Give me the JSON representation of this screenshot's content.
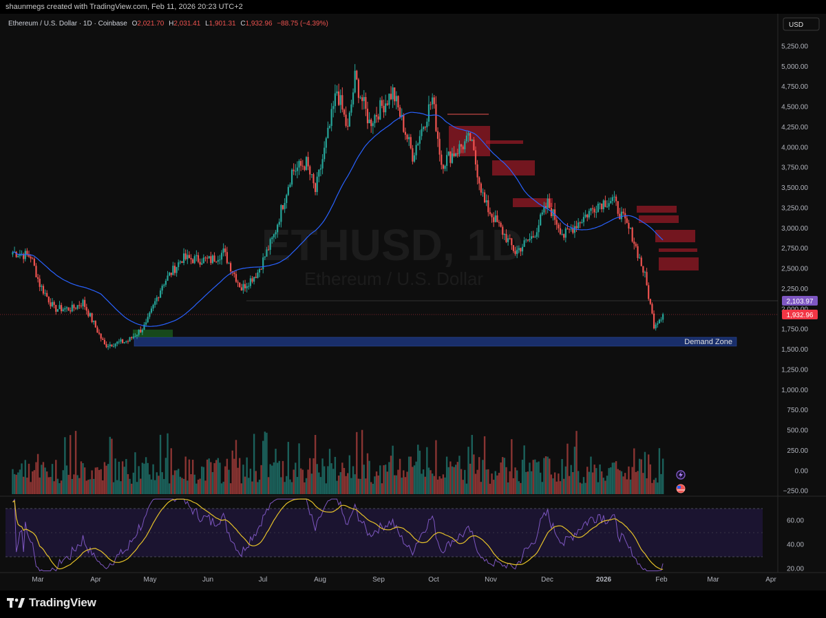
{
  "header": {
    "credit": "shaunmegs created with TradingView.com, Feb 11, 2026 20:23 UTC+2"
  },
  "chart_info": {
    "pair": "Ethereum / U.S. Dollar · 1D · Coinbase",
    "o_label": "O",
    "o_value": "2,021.70",
    "h_label": "H",
    "h_value": "2,031.41",
    "l_label": "L",
    "l_value": "1,901.31",
    "c_label": "C",
    "c_value": "1,932.96",
    "change": "−88.75 (−4.39%)",
    "currency": "USD",
    "watermark_symbol": "ETHUSD, 1D",
    "watermark_name": "Ethereum / U.S. Dollar"
  },
  "price_axis": [
    "5,250.00",
    "5,000.00",
    "4,750.00",
    "4,500.00",
    "4,250.00",
    "4,000.00",
    "3,750.00",
    "3,500.00",
    "3,250.00",
    "3,000.00",
    "2,750.00",
    "2,500.00",
    "2,250.00",
    "2,000.00",
    "1,750.00",
    "1,500.00",
    "1,250.00",
    "1,000.00",
    "750.00",
    "500.00",
    "250.00",
    "0.00",
    "−250.00"
  ],
  "rsi_axis": [
    "60.00",
    "40.00",
    "20.00"
  ],
  "time_axis": [
    "Mar",
    "Apr",
    "May",
    "Jun",
    "Jul",
    "Aug",
    "Sep",
    "Oct",
    "Nov",
    "Dec",
    "2026",
    "Feb",
    "Mar",
    "Apr"
  ],
  "price_tags": {
    "ma_value": "2,103.97",
    "last_price": "1,932.96"
  },
  "demand_zone": {
    "label": "Demand Zone",
    "from": 1555,
    "to": 1665
  },
  "footer": {
    "brand": "TradingView"
  },
  "colors": {
    "up": "#26a69a",
    "down": "#ef5350",
    "ma": "#2962ff",
    "rsi": "#7e57c2",
    "rsi_ma": "#e6c229",
    "zone": "#1e3a8a",
    "ma_tag": "#7e57c2",
    "last_tag": "#f23645"
  },
  "chart_data": {
    "type": "candlestick",
    "title": "Ethereum / U.S. Dollar · 1D · Coinbase",
    "x_range": [
      "2025-02-11",
      "2026-04-15"
    ],
    "y_range": [
      1250,
      5300
    ],
    "price_path": [
      {
        "date": "2025-02-15",
        "close": 2700
      },
      {
        "date": "2025-02-25",
        "close": 2650
      },
      {
        "date": "2025-03-02",
        "close": 2300
      },
      {
        "date": "2025-03-10",
        "close": 2000
      },
      {
        "date": "2025-03-20",
        "close": 2000
      },
      {
        "date": "2025-03-26",
        "close": 2080
      },
      {
        "date": "2025-04-07",
        "close": 1550
      },
      {
        "date": "2025-04-20",
        "close": 1600
      },
      {
        "date": "2025-04-30",
        "close": 1800
      },
      {
        "date": "2025-05-09",
        "close": 2300
      },
      {
        "date": "2025-05-20",
        "close": 2620
      },
      {
        "date": "2025-06-05",
        "close": 2600
      },
      {
        "date": "2025-06-12",
        "close": 2700
      },
      {
        "date": "2025-06-22",
        "close": 2250
      },
      {
        "date": "2025-07-01",
        "close": 2450
      },
      {
        "date": "2025-07-10",
        "close": 2900
      },
      {
        "date": "2025-07-20",
        "close": 3700
      },
      {
        "date": "2025-07-28",
        "close": 3800
      },
      {
        "date": "2025-08-02",
        "close": 3450
      },
      {
        "date": "2025-08-10",
        "close": 4250
      },
      {
        "date": "2025-08-14",
        "close": 4700
      },
      {
        "date": "2025-08-20",
        "close": 4200
      },
      {
        "date": "2025-08-24",
        "close": 4850
      },
      {
        "date": "2025-09-01",
        "close": 4300
      },
      {
        "date": "2025-09-14",
        "close": 4680
      },
      {
        "date": "2025-09-25",
        "close": 3900
      },
      {
        "date": "2025-10-06",
        "close": 4600
      },
      {
        "date": "2025-10-11",
        "close": 3800
      },
      {
        "date": "2025-10-27",
        "close": 4100
      },
      {
        "date": "2025-11-04",
        "close": 3300
      },
      {
        "date": "2025-11-21",
        "close": 2700
      },
      {
        "date": "2025-12-01",
        "close": 2900
      },
      {
        "date": "2025-12-09",
        "close": 3300
      },
      {
        "date": "2025-12-18",
        "close": 2900
      },
      {
        "date": "2026-01-06",
        "close": 3300
      },
      {
        "date": "2026-01-14",
        "close": 3350
      },
      {
        "date": "2026-01-25",
        "close": 2900
      },
      {
        "date": "2026-02-01",
        "close": 2400
      },
      {
        "date": "2026-02-06",
        "close": 1800
      },
      {
        "date": "2026-02-11",
        "close": 1932.96
      }
    ],
    "moving_average": {
      "current": 2103.97
    }
  }
}
